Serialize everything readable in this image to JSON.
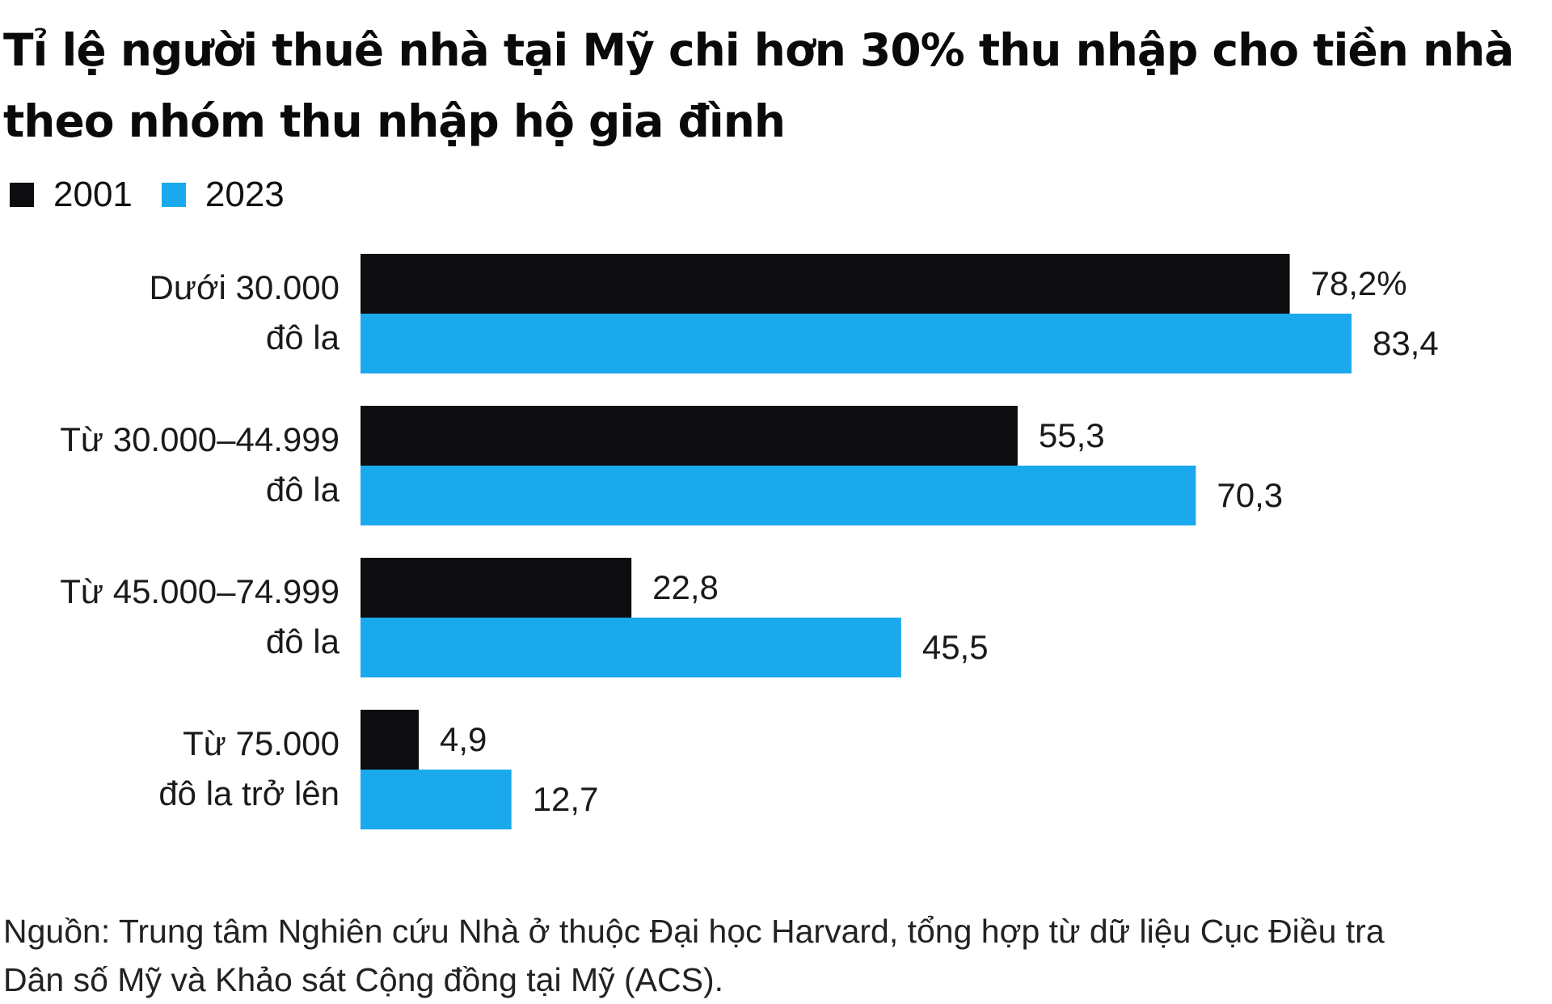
{
  "title_line1": "Tỉ lệ người thuê nhà tại Mỹ chi hơn 30% thu nhập cho tiền nhà",
  "title_line2": "theo nhóm thu nhập hộ gia đình",
  "legend": [
    {
      "label": "2001",
      "color": "#0d0d10"
    },
    {
      "label": "2023",
      "color": "#1aa9ec"
    }
  ],
  "chart_data": {
    "type": "bar",
    "orientation": "horizontal",
    "categories": [
      [
        "Dưới 30.000",
        "đô la"
      ],
      [
        "Từ 30.000–44.999",
        "đô la"
      ],
      [
        "Từ 45.000–74.999",
        "đô la"
      ],
      [
        "Từ 75.000",
        "đô la trở lên"
      ]
    ],
    "series": [
      {
        "name": "2001",
        "color": "#0d0d10",
        "values": [
          78.2,
          55.3,
          22.8,
          4.9
        ],
        "labels": [
          "78,2%",
          "55,3",
          "22,8",
          "4,9"
        ]
      },
      {
        "name": "2023",
        "color": "#1aa9ec",
        "values": [
          83.4,
          70.3,
          45.5,
          12.7
        ],
        "labels": [
          "83,4",
          "70,3",
          "45,5",
          "12,7"
        ]
      }
    ],
    "xlim": [
      0,
      100
    ],
    "grid": false,
    "legend_position": "top-left"
  },
  "source_line1": "Nguồn: Trung tâm Nghiên cứu Nhà ở thuộc Đại học Harvard, tổng hợp từ dữ liệu Cục Điều tra",
  "source_line2": "Dân số Mỹ và Khảo sát Cộng đồng tại Mỹ (ACS)."
}
